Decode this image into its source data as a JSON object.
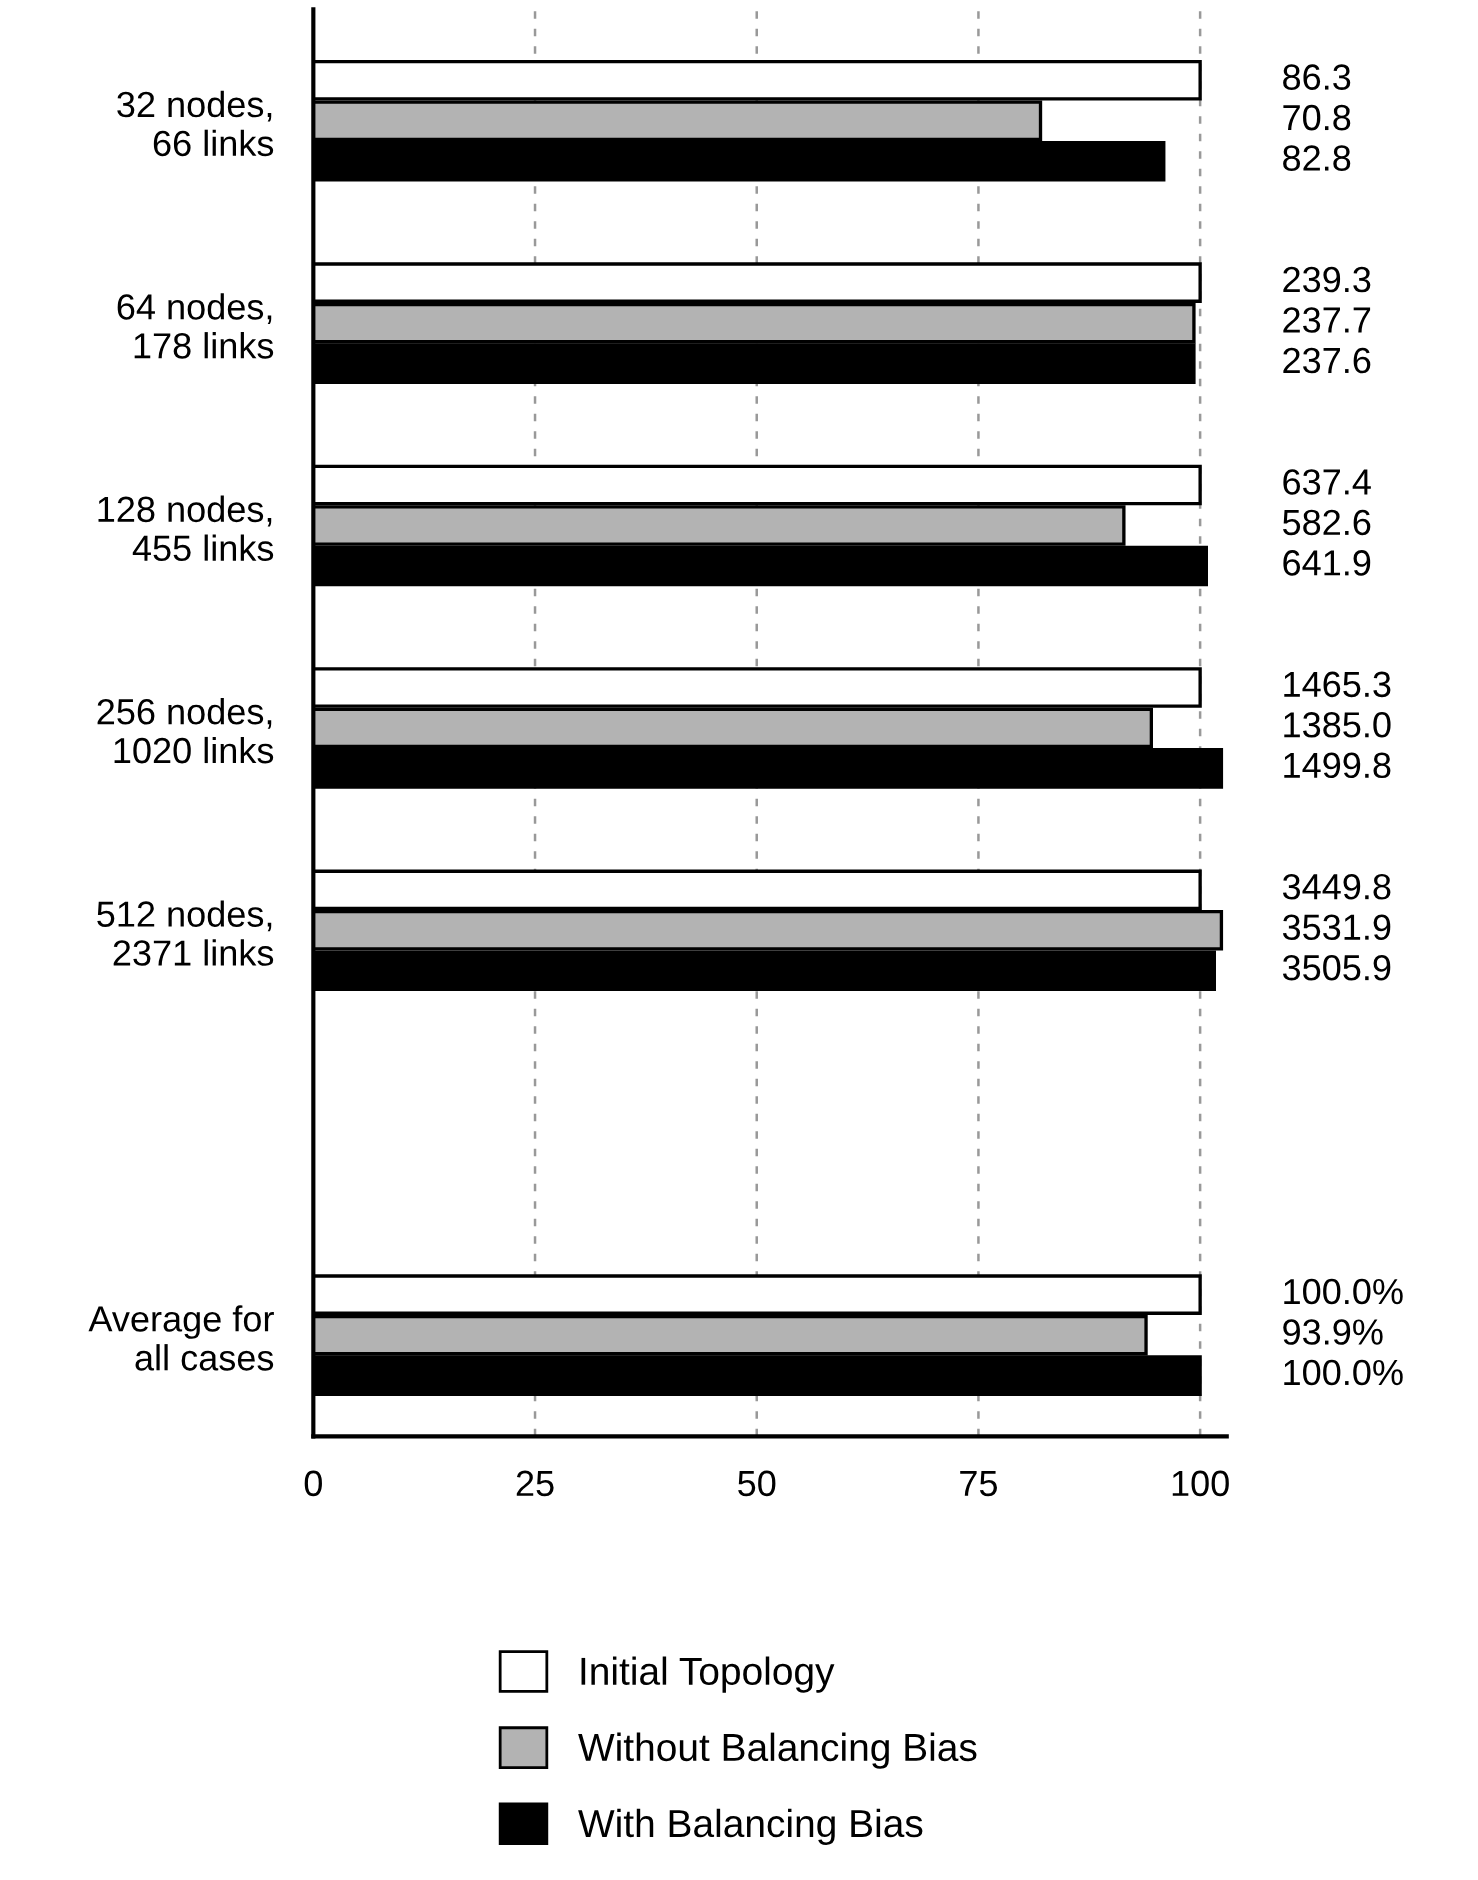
{
  "chart_data": {
    "type": "bar",
    "orientation": "horizontal",
    "categories": [
      "32 nodes,\n66 links",
      "64 nodes,\n178 links",
      "128 nodes,\n455 links",
      "256 nodes,\n1020 links",
      "512 nodes,\n2371 links",
      null,
      "Average for\nall cases"
    ],
    "series": [
      {
        "name": "Initial Topology",
        "color": "#ffffff",
        "values": [
          100,
          100,
          100,
          100,
          100,
          null,
          100
        ]
      },
      {
        "name": "Without Balancing Bias",
        "color": "#b3b3b3",
        "values": [
          82.0,
          99.3,
          91.4,
          94.5,
          102.4,
          null,
          93.9
        ]
      },
      {
        "name": "With Balancing Bias",
        "color": "#000000",
        "values": [
          95.9,
          99.3,
          100.7,
          102.4,
          101.6,
          null,
          100.0
        ]
      }
    ],
    "annotations": [
      "86.3",
      "70.8",
      "82.8",
      "239.3",
      "237.7",
      "237.6",
      "637.4",
      "582.6",
      "641.9",
      "1465.3",
      "1385.0",
      "1499.8",
      "3449.8",
      "3531.9",
      "3505.9",
      "100.0%",
      "93.9%",
      "100.0%"
    ],
    "xlim": [
      0,
      103
    ],
    "xticks": [
      0,
      25,
      50,
      75,
      100
    ],
    "grid": "x",
    "legend": "bottom"
  }
}
